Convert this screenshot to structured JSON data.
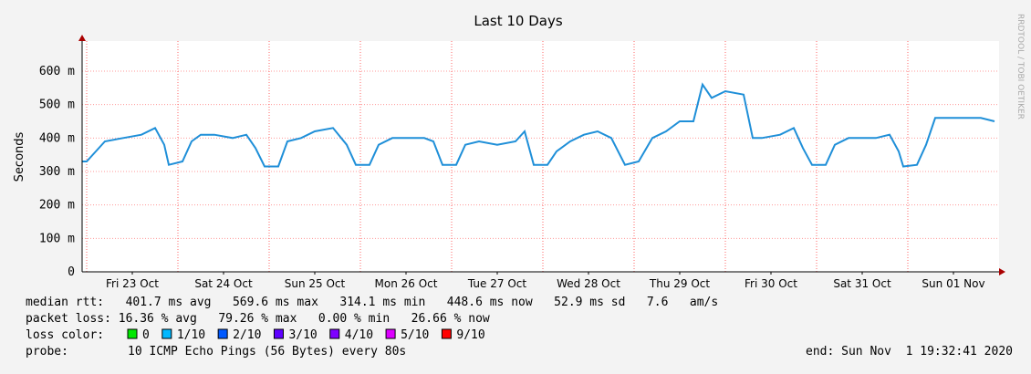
{
  "chart_data": {
    "type": "line",
    "title": "Last 10 Days",
    "y_label": "Seconds",
    "side_text": "RRDTOOL / TOBI OETIKER",
    "xlim": [
      -0.05,
      10.0
    ],
    "xticks": [
      {
        "value": 0.5,
        "label": "Fri 23 Oct"
      },
      {
        "value": 1.5,
        "label": "Sat 24 Oct"
      },
      {
        "value": 2.5,
        "label": "Sun 25 Oct"
      },
      {
        "value": 3.5,
        "label": "Mon 26 Oct"
      },
      {
        "value": 4.5,
        "label": "Tue 27 Oct"
      },
      {
        "value": 5.5,
        "label": "Wed 28 Oct"
      },
      {
        "value": 6.5,
        "label": "Thu 29 Oct"
      },
      {
        "value": 7.5,
        "label": "Fri 30 Oct"
      },
      {
        "value": 8.5,
        "label": "Sat 31 Oct"
      },
      {
        "value": 9.5,
        "label": "Sun 01 Nov"
      }
    ],
    "xgrid": [
      0,
      1,
      2,
      3,
      4,
      5,
      6,
      7,
      8,
      9
    ],
    "ylim": [
      0,
      0.69
    ],
    "yticks": [
      0,
      {
        "value": 0.1,
        "label": "100 m"
      },
      {
        "value": 0.2,
        "label": "200 m"
      },
      {
        "value": 0.3,
        "label": "300 m"
      },
      {
        "value": 0.4,
        "label": "400 m"
      },
      {
        "value": 0.5,
        "label": "500 m"
      },
      {
        "value": 0.6,
        "label": "600 m"
      }
    ],
    "grid": true,
    "series": [
      {
        "name": "median rtt",
        "color": "#1f8fd8",
        "x": [
          -0.05,
          0,
          0.1,
          0.2,
          0.4,
          0.6,
          0.75,
          0.85,
          0.9,
          1.05,
          1.15,
          1.25,
          1.4,
          1.6,
          1.75,
          1.85,
          1.95,
          2.1,
          2.2,
          2.35,
          2.5,
          2.7,
          2.85,
          2.95,
          3.1,
          3.2,
          3.35,
          3.5,
          3.7,
          3.8,
          3.9,
          4.05,
          4.15,
          4.3,
          4.5,
          4.7,
          4.8,
          4.9,
          5.05,
          5.15,
          5.3,
          5.45,
          5.6,
          5.75,
          5.9,
          6.05,
          6.2,
          6.35,
          6.5,
          6.65,
          6.75,
          6.85,
          7.0,
          7.2,
          7.3,
          7.4,
          7.6,
          7.75,
          7.85,
          7.95,
          8.1,
          8.2,
          8.35,
          8.5,
          8.65,
          8.8,
          8.9,
          8.95,
          9.1,
          9.2,
          9.3,
          9.4,
          9.6,
          9.8,
          9.95
        ],
        "values": [
          0.33,
          0.33,
          0.36,
          0.39,
          0.4,
          0.41,
          0.43,
          0.38,
          0.32,
          0.33,
          0.39,
          0.41,
          0.41,
          0.4,
          0.41,
          0.37,
          0.315,
          0.315,
          0.39,
          0.4,
          0.42,
          0.43,
          0.38,
          0.32,
          0.32,
          0.38,
          0.4,
          0.4,
          0.4,
          0.39,
          0.32,
          0.32,
          0.38,
          0.39,
          0.38,
          0.39,
          0.42,
          0.32,
          0.32,
          0.36,
          0.39,
          0.41,
          0.42,
          0.4,
          0.32,
          0.33,
          0.4,
          0.42,
          0.45,
          0.45,
          0.56,
          0.52,
          0.54,
          0.53,
          0.4,
          0.4,
          0.41,
          0.43,
          0.37,
          0.32,
          0.32,
          0.38,
          0.4,
          0.4,
          0.4,
          0.41,
          0.36,
          0.315,
          0.32,
          0.38,
          0.46,
          0.46,
          0.46,
          0.46,
          0.45
        ]
      }
    ],
    "stats": [
      "median rtt:   401.7 ms avg   569.6 ms max   314.1 ms min   448.6 ms now   52.9 ms sd   7.6   am/s",
      "packet loss: 16.36 % avg   79.26 % max   0.00 % min   26.66 % now"
    ],
    "loss_label": "loss color:",
    "loss_colors": [
      {
        "label": "0",
        "color": "#00e800"
      },
      {
        "label": "1/10",
        "color": "#00b8ff"
      },
      {
        "label": "2/10",
        "color": "#0059ff"
      },
      {
        "label": "3/10",
        "color": "#5e00ff"
      },
      {
        "label": "4/10",
        "color": "#7e00ff"
      },
      {
        "label": "5/10",
        "color": "#dd00ff"
      },
      {
        "label": "9/10",
        "color": "#ff0000"
      }
    ],
    "probe_label": "probe:",
    "probe": "10 ICMP Echo Pings (56 Bytes) every 80s",
    "end": "end: Sun Nov  1 19:32:41 2020"
  }
}
